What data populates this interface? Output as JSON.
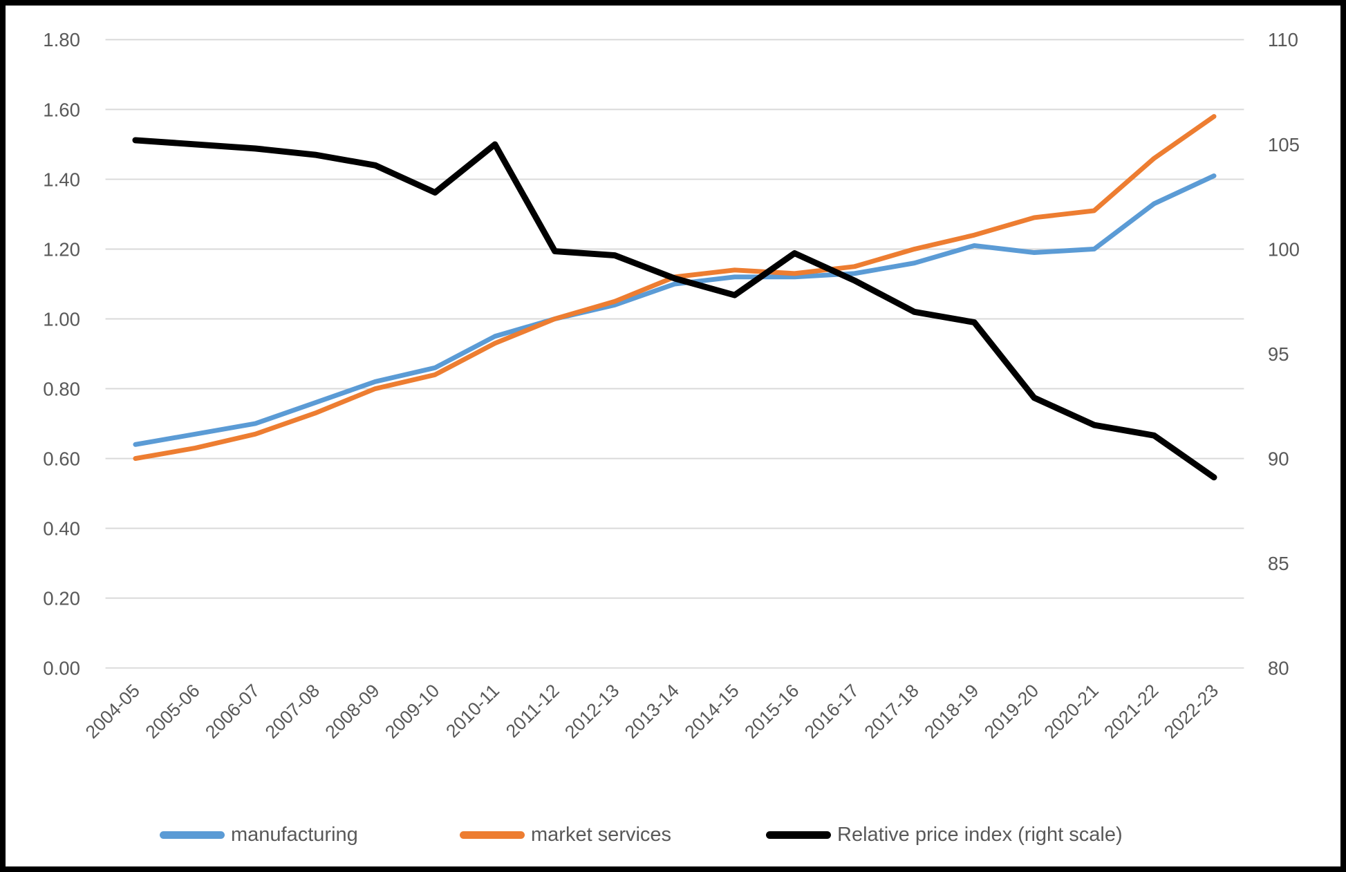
{
  "chart_data": {
    "type": "line",
    "title": "",
    "categories": [
      "2004-05",
      "2005-06",
      "2006-07",
      "2007-08",
      "2008-09",
      "2009-10",
      "2010-11",
      "2011-12",
      "2012-13",
      "2013-14",
      "2014-15",
      "2015-16",
      "2016-17",
      "2017-18",
      "2018-19",
      "2019-20",
      "2020-21",
      "2021-22",
      "2022-23"
    ],
    "series": [
      {
        "name": "manufacturing",
        "color": "#5B9BD5",
        "axis": "left",
        "stroke_width": 7,
        "values": [
          0.64,
          0.67,
          0.7,
          0.76,
          0.82,
          0.86,
          0.95,
          1.0,
          1.04,
          1.1,
          1.12,
          1.12,
          1.13,
          1.16,
          1.21,
          1.19,
          1.2,
          1.33,
          1.41
        ]
      },
      {
        "name": "market services",
        "color": "#ED7D31",
        "axis": "left",
        "stroke_width": 7,
        "values": [
          0.6,
          0.63,
          0.67,
          0.73,
          0.8,
          0.84,
          0.93,
          1.0,
          1.05,
          1.12,
          1.14,
          1.13,
          1.15,
          1.2,
          1.24,
          1.29,
          1.31,
          1.46,
          1.58
        ]
      },
      {
        "name": "Relative price index (right scale)",
        "color": "#000000",
        "axis": "right",
        "stroke_width": 9,
        "values": [
          105.2,
          105.0,
          104.8,
          104.5,
          104.0,
          102.7,
          105.0,
          99.9,
          99.7,
          98.6,
          97.8,
          99.8,
          98.5,
          97.0,
          96.5,
          92.9,
          91.6,
          91.1,
          89.1
        ]
      }
    ],
    "left_axis": {
      "min": 0.0,
      "max": 1.8,
      "step": 0.2,
      "tick_labels": [
        "0.00",
        "0.20",
        "0.40",
        "0.60",
        "0.80",
        "1.00",
        "1.20",
        "1.40",
        "1.60",
        "1.80"
      ]
    },
    "right_axis": {
      "min": 80,
      "max": 110,
      "step": 5,
      "tick_labels": [
        "80",
        "85",
        "90",
        "95",
        "100",
        "105",
        "110"
      ]
    },
    "grid": true,
    "legend_position": "bottom"
  },
  "styles": {
    "grid_color": "#D9D9D9",
    "label_color": "#595959",
    "background": "#FFFFFF",
    "frame_color": "#000000"
  }
}
